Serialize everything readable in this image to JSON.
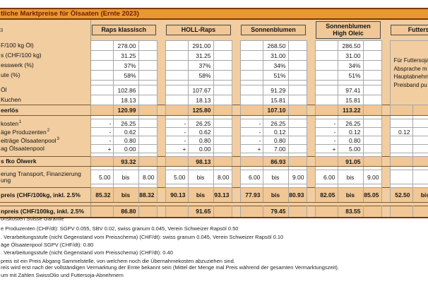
{
  "title": "tliche Marktpreise für Ölsaaten (Ernte 2023)",
  "header": {
    "left_fragment": "3",
    "products": [
      {
        "id": "raps-klassisch",
        "label": "Raps klassisch"
      },
      {
        "id": "holl-raps",
        "label": "HOLL-Raps"
      },
      {
        "id": "sonnenblumen",
        "label": "Sonnenblumen"
      },
      {
        "id": "sonnenblumen-high-oleic",
        "label": "Sonnenblumen",
        "label2": "High Oleic"
      },
      {
        "id": "futtersoja",
        "label": "Futtersoja"
      }
    ]
  },
  "side_note_lines": [
    "Für Futtersoja",
    "Absprache m",
    "Hauptabnehm",
    "Preisband pu"
  ],
  "rows": [
    {
      "id": "oelpreis",
      "label": "F/100 kg Öl)",
      "kind": "data",
      "h": 14,
      "cells": [
        {
          "v": "278.00"
        },
        {
          "v": "291.00"
        },
        {
          "v": "268.50"
        },
        {
          "v": "286.50"
        },
        "note"
      ]
    },
    {
      "id": "saatpreis",
      "label": "s (CHF/100 kg)",
      "kind": "data",
      "h": 14,
      "cells": [
        {
          "v": "31.25"
        },
        {
          "v": "31.25"
        },
        {
          "v": "31.00"
        },
        {
          "v": "31.00"
        },
        "merged"
      ]
    },
    {
      "id": "presswerk",
      "label": "esswerk (%)",
      "kind": "data",
      "h": 14,
      "cells": [
        {
          "v": "37%"
        },
        {
          "v": "37%"
        },
        {
          "v": "34%"
        },
        {
          "v": "34%"
        },
        "merged"
      ]
    },
    {
      "id": "ausbeute",
      "label": "ute (%)",
      "kind": "data",
      "h": 14,
      "cells": [
        {
          "v": "58%"
        },
        {
          "v": "58%"
        },
        {
          "v": "51%"
        },
        {
          "v": "51%"
        },
        "merged"
      ]
    },
    {
      "id": "sep1",
      "kind": "thin",
      "h": 7,
      "cells": [
        {},
        {},
        {},
        {},
        "merged"
      ]
    },
    {
      "id": "erloes-oel",
      "label": "Öl",
      "kind": "data",
      "h": 14,
      "cells": [
        {
          "v": "102.86"
        },
        {
          "v": "107.67"
        },
        {
          "v": "91.29"
        },
        {
          "v": "97.41"
        },
        "merged"
      ]
    },
    {
      "id": "erloes-kuchen",
      "label": "Kuchen",
      "kind": "data",
      "h": 14,
      "cells": [
        {
          "v": "18.13"
        },
        {
          "v": "18.13"
        },
        {
          "v": "15.81"
        },
        {
          "v": "15.81"
        },
        "merged"
      ]
    },
    {
      "id": "bruttoerloes",
      "label": "eerlös",
      "bold": true,
      "kind": "sum",
      "h": 15,
      "cells": [
        {
          "v": "120.99"
        },
        {
          "v": "125.80"
        },
        {
          "v": "107.10"
        },
        {
          "v": "113.22"
        },
        {}
      ]
    },
    {
      "id": "sep2",
      "kind": "thin",
      "h": 5,
      "cells": [
        {},
        {},
        {},
        {},
        {}
      ]
    },
    {
      "id": "uebernahmekosten",
      "label": "kosten",
      "sup": "1",
      "kind": "data",
      "h": 12,
      "cells": [
        {
          "s": "-",
          "v": "26.25"
        },
        {
          "s": "-",
          "v": "26.25"
        },
        {
          "s": "-",
          "v": "26.25"
        },
        {
          "s": "-",
          "v": "26.25"
        },
        {}
      ]
    },
    {
      "id": "beitraege-produzenten",
      "label": "äge Produzenten",
      "sup": "2",
      "kind": "data",
      "h": 12,
      "cells": [
        {
          "s": "-",
          "v": "0.62"
        },
        {
          "s": "-",
          "v": "0.62"
        },
        {
          "s": "-",
          "v": "0.12"
        },
        {
          "s": "-",
          "v": "0.12"
        },
        {
          "v": "0.12",
          "pos": "c1"
        }
      ]
    },
    {
      "id": "beitraege-oelsaatenpool",
      "label": "eiträge Ölsaatenpool",
      "sup": "3",
      "kind": "data",
      "h": 12,
      "cells": [
        {
          "s": "-",
          "v": "0.80"
        },
        {
          "s": "-",
          "v": "0.80"
        },
        {
          "s": "-",
          "v": "0.80"
        },
        {
          "s": "-",
          "v": "0.80"
        },
        {}
      ]
    },
    {
      "id": "beitrag-oelsaatenpool",
      "label": "ag Ölsaatenpool",
      "kind": "data",
      "h": 12,
      "cells": [
        {
          "s": "+",
          "v": "0.00"
        },
        {
          "s": "+",
          "v": "0.00"
        },
        {
          "s": "+",
          "v": "7.00"
        },
        {
          "s": "+",
          "v": "5.00"
        },
        {}
      ]
    },
    {
      "id": "sep3",
      "kind": "thin",
      "h": 5,
      "cells": [
        {},
        {},
        {},
        {},
        {}
      ]
    },
    {
      "id": "preis-fko-oelwerk",
      "label": "s fko Ölwerk",
      "bold": true,
      "kind": "sum",
      "h": 14,
      "cells": [
        {
          "v": "93.32"
        },
        {
          "v": "98.13"
        },
        {
          "v": "86.93"
        },
        {
          "v": "91.05"
        },
        {}
      ]
    },
    {
      "id": "sep4",
      "kind": "thin",
      "h": 5,
      "cells": [
        {},
        {},
        {},
        {},
        {}
      ]
    },
    {
      "id": "lagerung",
      "label": "erung Transport, Finanzierung",
      "label2": "ung",
      "kind": "range-white",
      "h": 20,
      "cells": [
        {
          "lo": "5.00",
          "bis": "bis",
          "hi": "8.00"
        },
        {
          "lo": "5.00",
          "bis": "bis",
          "hi": "8.00"
        },
        {
          "lo": "6.00",
          "bis": "bis",
          "hi": "9.00"
        },
        {
          "lo": "6.00",
          "bis": "bis",
          "hi": "9.00"
        },
        {}
      ]
    },
    {
      "id": "sep5",
      "kind": "thin",
      "h": 5,
      "cells": [
        {},
        {},
        {},
        {},
        {}
      ]
    },
    {
      "id": "richtpreis",
      "label": "preis (CHF/100kg, inkl. 2.5%",
      "bold": true,
      "kind": "range-sum",
      "h": 21,
      "cells": [
        {
          "lo": "85.32",
          "bis": "bis",
          "hi": "88.32"
        },
        {
          "lo": "90.13",
          "bis": "bis",
          "hi": "93.13"
        },
        {
          "lo": "77.93",
          "bis": "bis",
          "hi": "80.93"
        },
        {
          "lo": "82.05",
          "bis": "bis",
          "hi": "85.05"
        },
        {
          "lo": "52.50",
          "bis": "bis",
          "hi": ""
        }
      ]
    },
    {
      "id": "sep6",
      "kind": "thin-tan",
      "h": 5,
      "cells": [
        {},
        {},
        {},
        {},
        {}
      ]
    },
    {
      "id": "mittelpreis",
      "label": "npreis (CHF/100kg, inkl. 2.5%",
      "bold": true,
      "kind": "sum",
      "h": 16,
      "cells": [
        {
          "v": "86.80"
        },
        {
          "v": "91.65"
        },
        {
          "v": "79.45"
        },
        {
          "v": "83.55"
        },
        {}
      ]
    }
  ],
  "footnotes": [
    "onskosten Suisse Garantie",
    "e Produzenten (CHF/dt): SGPV 0.055, SBV 0.02, swiss granum 0.045, Verein Schweizer Rapsöl 0.50",
    ". Verarbeitungsstufe (nicht Gegenstand vom Preisschema) (CHF/dt): swiss granum 0.045, Verein Schweizer Rapsöl 0.10",
    "äge Ölsaatenpool SGPV (CHF/dt): 0.80",
    ". Verarbeitungsstufe (nicht Gegenstand vom Preisschema) (CHF/dt): 0.40",
    "preis ist ein Preis Abgang Sammelstelle, von welchem noch die Übernahmekosten abzuziehen sind.",
    "reis wird erst nach der vollständigen Vermarktung der Ernte bekannt sein (Mittel der Menge mal Preis während der gesamten Vermarktungszeit).",
    "um mit Zahlen SwissOlio und Futtersoja-Abnehmern"
  ],
  "colors": {
    "body_tan": "#f1cda0",
    "header_tan": "#f0c795",
    "title_orange": "#e8982f",
    "title_text": "#7a1b00",
    "outer_border": "#7a3a10",
    "cell_border": "#a8a8a8"
  }
}
